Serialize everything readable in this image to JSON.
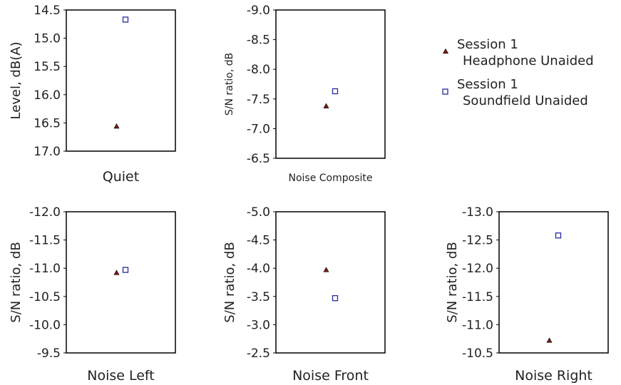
{
  "legend": {
    "entries": [
      {
        "line1": "Session 1",
        "line2": "Headphone Unaided",
        "marker": "triangle",
        "color": "#7a1a14"
      },
      {
        "line1": "Session 1",
        "line2": "Soundfield Unaided",
        "marker": "square",
        "color": "#2a2aa0"
      }
    ]
  },
  "chart_data": [
    {
      "type": "scatter",
      "xlabel": "Quiet",
      "ylabel": "Level, dB(A)",
      "ylim": [
        17.0,
        14.5
      ],
      "yticks": [
        "14.5",
        "15.0",
        "15.5",
        "16.0",
        "16.5",
        "17.0"
      ],
      "series": [
        {
          "name": "Session 1 Headphone Unaided",
          "values": [
            16.56
          ]
        },
        {
          "name": "Session 1 Soundfield Unaided",
          "values": [
            14.67
          ]
        }
      ]
    },
    {
      "type": "scatter",
      "xlabel": "Noise Composite",
      "ylabel": "S/N ratio, dB",
      "ylim": [
        -6.5,
        -9.0
      ],
      "yticks": [
        "-9.0",
        "-8.5",
        "-8.0",
        "-7.5",
        "-7.0",
        "-6.5"
      ],
      "series": [
        {
          "name": "Session 1 Headphone Unaided",
          "values": [
            -7.38
          ]
        },
        {
          "name": "Session 1 Soundfield Unaided",
          "values": [
            -7.63
          ]
        }
      ]
    },
    {
      "type": "scatter",
      "xlabel": "Noise Left",
      "ylabel": "S/N ratio, dB",
      "ylim": [
        -9.5,
        -12.0
      ],
      "yticks": [
        "-12.0",
        "-11.5",
        "-11.0",
        "-10.5",
        "-10.0",
        "-9.5"
      ],
      "series": [
        {
          "name": "Session 1 Headphone Unaided",
          "values": [
            -10.92
          ]
        },
        {
          "name": "Session 1 Soundfield Unaided",
          "values": [
            -10.97
          ]
        }
      ]
    },
    {
      "type": "scatter",
      "xlabel": "Noise Front",
      "ylabel": "S/N ratio, dB",
      "ylim": [
        -2.5,
        -5.0
      ],
      "yticks": [
        "-5.0",
        "-4.5",
        "-4.0",
        "-3.5",
        "-3.0",
        "-2.5"
      ],
      "series": [
        {
          "name": "Session 1 Headphone Unaided",
          "values": [
            -3.97
          ]
        },
        {
          "name": "Session 1 Soundfield Unaided",
          "values": [
            -3.47
          ]
        }
      ]
    },
    {
      "type": "scatter",
      "xlabel": "Noise Right",
      "ylabel": "S/N ratio, dB",
      "ylim": [
        -10.5,
        -13.0
      ],
      "yticks": [
        "-13.0",
        "-12.5",
        "-12.0",
        "-11.5",
        "-11.0",
        "-10.5"
      ],
      "series": [
        {
          "name": "Session 1 Headphone Unaided",
          "values": [
            -10.72
          ]
        },
        {
          "name": "Session 1 Soundfield Unaided",
          "values": [
            -12.58
          ]
        }
      ]
    }
  ]
}
